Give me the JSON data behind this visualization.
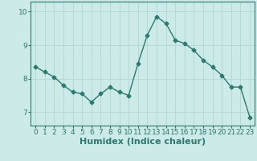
{
  "x": [
    0,
    1,
    2,
    3,
    4,
    5,
    6,
    7,
    8,
    9,
    10,
    11,
    12,
    13,
    14,
    15,
    16,
    17,
    18,
    19,
    20,
    21,
    22,
    23
  ],
  "y": [
    8.35,
    8.2,
    8.05,
    7.8,
    7.6,
    7.55,
    7.3,
    7.55,
    7.75,
    7.6,
    7.5,
    8.45,
    9.3,
    9.85,
    9.65,
    9.15,
    9.05,
    8.85,
    8.55,
    8.35,
    8.1,
    7.75,
    7.75,
    6.85
  ],
  "line_color": "#2d7a6e",
  "marker": "D",
  "markersize": 2.5,
  "linewidth": 1.0,
  "bg_color": "#cceae8",
  "grid_color": "#b0d8d5",
  "xlabel": "Humidex (Indice chaleur)",
  "xlabel_fontsize": 8,
  "yticks": [
    7,
    8,
    9,
    10
  ],
  "xticks": [
    0,
    1,
    2,
    3,
    4,
    5,
    6,
    7,
    8,
    9,
    10,
    11,
    12,
    13,
    14,
    15,
    16,
    17,
    18,
    19,
    20,
    21,
    22,
    23
  ],
  "xlim": [
    -0.5,
    23.5
  ],
  "ylim": [
    6.6,
    10.3
  ],
  "tick_fontsize": 6.5,
  "axis_color": "#2d7a6e"
}
